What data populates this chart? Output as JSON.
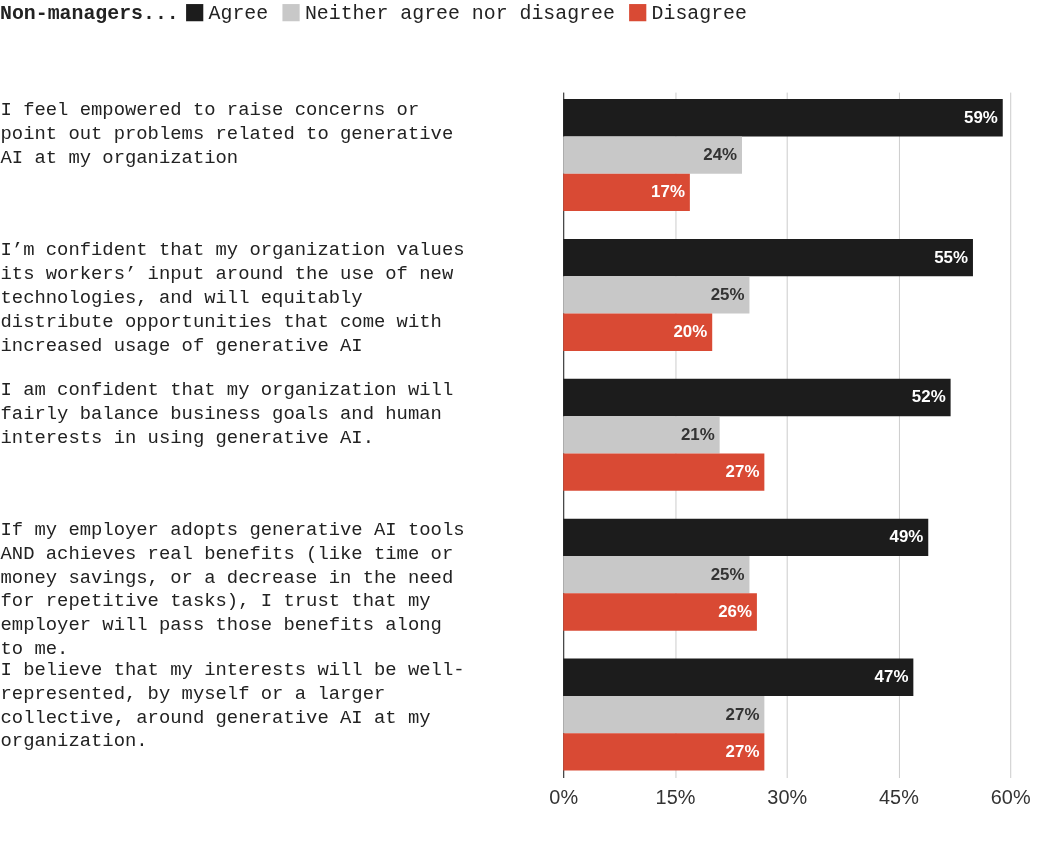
{
  "chart_data": {
    "type": "bar",
    "orientation": "horizontal",
    "legend_title": "Non-managers...",
    "legend": "top left",
    "categories": [
      "I feel empowered to raise concerns or point out problems related to generative AI at my organization",
      "I’m confident that my organization values its workers’ input around the use of new technologies, and will equitably distribute opportunities that come with increased usage of generative AI",
      "I am confident that my organization will fairly balance business goals and human interests in using generative AI.",
      "If my employer adopts generative AI tools AND achieves real benefits (like time or money savings, or a decrease in the need for repetitive tasks), I trust that my employer will pass those benefits along to me.",
      "I believe that my interests will be well-represented, by myself or a larger collective, around generative AI at my organization."
    ],
    "series": [
      {
        "name": "Agree",
        "color": "#1c1c1c",
        "values": [
          59,
          55,
          52,
          49,
          47
        ],
        "value_labels": [
          "59%",
          "55%",
          "52%",
          "49%",
          "47%"
        ]
      },
      {
        "name": "Neither agree nor disagree",
        "color": "#c8c8c8",
        "values": [
          24,
          25,
          21,
          25,
          27
        ],
        "value_labels": [
          "24%",
          "25%",
          "21%",
          "25%",
          "27%"
        ]
      },
      {
        "name": "Disagree",
        "color": "#d94a34",
        "values": [
          17,
          20,
          27,
          26,
          27
        ],
        "value_labels": [
          "17%",
          "20%",
          "27%",
          "26%",
          "27%"
        ]
      }
    ],
    "xlim": [
      0,
      60
    ],
    "xticks": [
      {
        "value": 0,
        "label": "0%"
      },
      {
        "value": 15,
        "label": "15%"
      },
      {
        "value": 30,
        "label": "30%"
      },
      {
        "value": 45,
        "label": "45%"
      },
      {
        "value": 60,
        "label": "60%"
      }
    ],
    "grid": "x"
  }
}
